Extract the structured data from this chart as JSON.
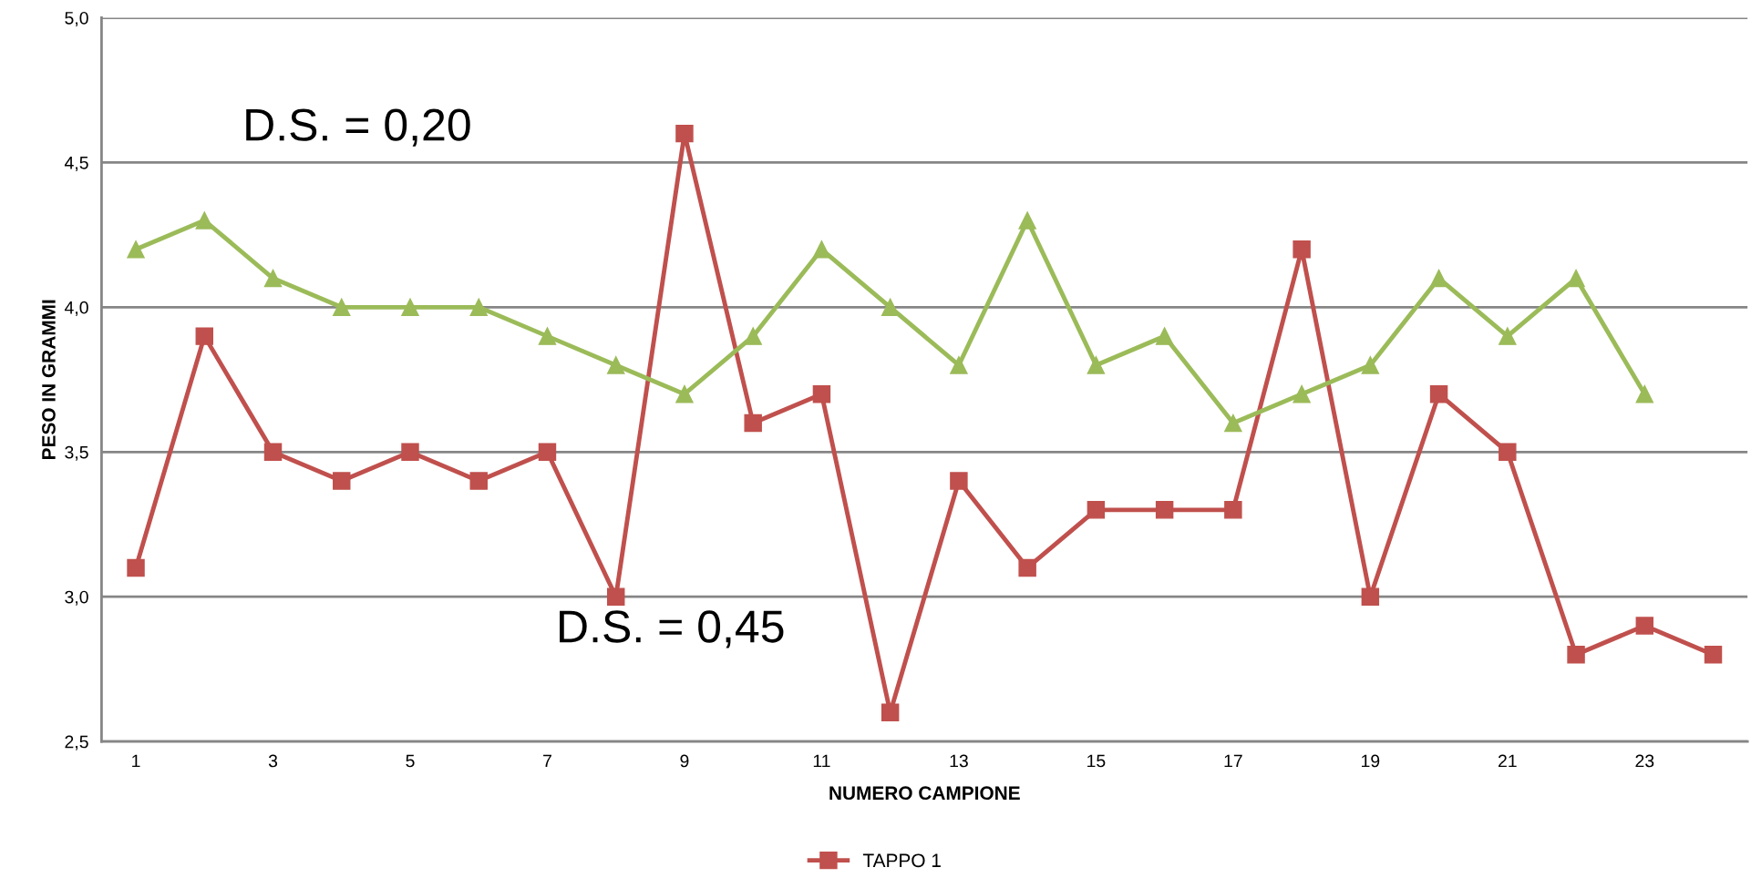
{
  "chart_data": {
    "type": "line",
    "xlabel": "NUMERO CAMPIONE",
    "ylabel": "PESO IN GRAMMI",
    "x": [
      1,
      2,
      3,
      4,
      5,
      6,
      7,
      8,
      9,
      10,
      11,
      12,
      13,
      14,
      15,
      16,
      17,
      18,
      19,
      20,
      21,
      22,
      23,
      24
    ],
    "xlim": [
      0.5,
      24.5
    ],
    "xticks": [
      1,
      3,
      5,
      7,
      9,
      11,
      13,
      15,
      17,
      19,
      21,
      23
    ],
    "ylim": [
      2.5,
      5.0
    ],
    "yticks": [
      {
        "value": 2.5,
        "label": "2,5"
      },
      {
        "value": 3.0,
        "label": "3,0"
      },
      {
        "value": 3.5,
        "label": "3,5"
      },
      {
        "value": 4.0,
        "label": "4,0"
      },
      {
        "value": 4.5,
        "label": "4,5"
      },
      {
        "value": 5.0,
        "label": "5,0"
      }
    ],
    "grid": "y",
    "legend": "bottom",
    "series": [
      {
        "name": "TAPPO 1",
        "color": "#c0504d",
        "marker": "square",
        "values": [
          3.1,
          3.9,
          3.5,
          3.4,
          3.5,
          3.4,
          3.5,
          3.0,
          4.6,
          3.6,
          3.7,
          2.6,
          3.4,
          3.1,
          3.3,
          3.3,
          3.3,
          4.2,
          3.0,
          3.7,
          3.5,
          2.8,
          2.9,
          2.8
        ]
      },
      {
        "color": "#9bbb59",
        "marker": "triangle",
        "values": [
          4.2,
          4.3,
          4.1,
          4.0,
          4.0,
          4.0,
          3.9,
          3.8,
          3.7,
          3.9,
          4.2,
          4.0,
          3.8,
          4.3,
          3.8,
          3.9,
          3.6,
          3.7,
          3.8,
          4.1,
          3.9,
          4.1,
          3.7,
          null
        ]
      }
    ],
    "annotations": [
      "D.S. = 0,20",
      "D.S. = 0,45"
    ]
  }
}
